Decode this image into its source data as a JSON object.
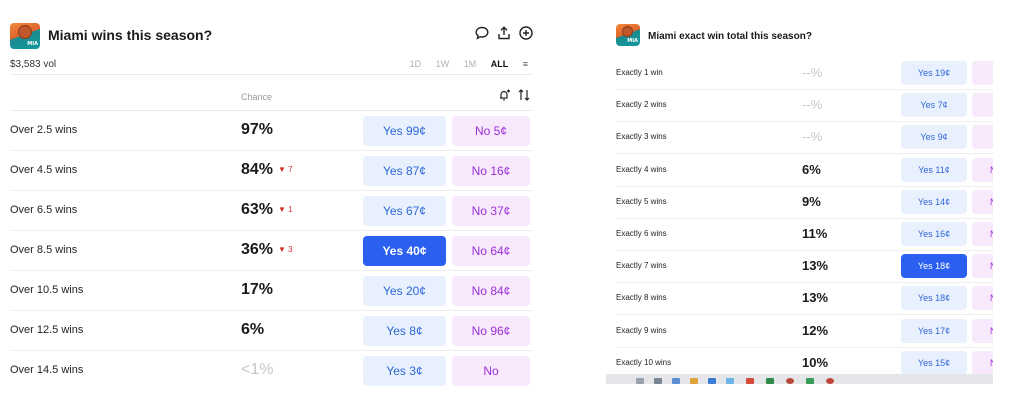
{
  "left": {
    "title": "Miami wins this season?",
    "logo_tag": "MIA",
    "volume": "$3,583 vol",
    "time_ranges": [
      {
        "label": "1D",
        "active": false
      },
      {
        "label": "1W",
        "active": false
      },
      {
        "label": "1M",
        "active": false
      },
      {
        "label": "ALL",
        "active": true
      }
    ],
    "menu_glyph": "≡",
    "header_icons": [
      "comment-icon",
      "share-icon",
      "add-circle-icon"
    ],
    "chance_header": "Chance",
    "tool_icons": [
      "bell-plus-icon",
      "sort-icon"
    ],
    "rows": [
      {
        "label": "Over 2.5 wins",
        "chance": "97%",
        "change": "",
        "yes": "Yes 99¢",
        "no": "No 5¢",
        "selected": false,
        "muted": false
      },
      {
        "label": "Over 4.5 wins",
        "chance": "84%",
        "change": "▼ 7",
        "yes": "Yes 87¢",
        "no": "No 16¢",
        "selected": false,
        "muted": false
      },
      {
        "label": "Over 6.5 wins",
        "chance": "63%",
        "change": "▼ 1",
        "yes": "Yes 67¢",
        "no": "No 37¢",
        "selected": false,
        "muted": false
      },
      {
        "label": "Over 8.5 wins",
        "chance": "36%",
        "change": "▼ 3",
        "yes": "Yes 40¢",
        "no": "No 64¢",
        "selected": true,
        "muted": false
      },
      {
        "label": "Over 10.5 wins",
        "chance": "17%",
        "change": "",
        "yes": "Yes 20¢",
        "no": "No 84¢",
        "selected": false,
        "muted": false
      },
      {
        "label": "Over 12.5 wins",
        "chance": "6%",
        "change": "",
        "yes": "Yes 8¢",
        "no": "No 96¢",
        "selected": false,
        "muted": false
      },
      {
        "label": "Over 14.5 wins",
        "chance": "<1%",
        "change": "",
        "yes": "Yes 3¢",
        "no": "No",
        "selected": false,
        "muted": true
      }
    ]
  },
  "right": {
    "title": "Miami exact win total this season?",
    "logo_tag": "MIA",
    "rows": [
      {
        "label": "Exactly 1 win",
        "chance": "--%",
        "yes": "Yes 19¢",
        "no": "",
        "selected": false,
        "muted": true
      },
      {
        "label": "Exactly 2 wins",
        "chance": "--%",
        "yes": "Yes 7¢",
        "no": "",
        "selected": false,
        "muted": true
      },
      {
        "label": "Exactly 3 wins",
        "chance": "--%",
        "yes": "Yes 9¢",
        "no": "",
        "selected": false,
        "muted": true
      },
      {
        "label": "Exactly 4 wins",
        "chance": "6%",
        "yes": "Yes 11¢",
        "no": "N",
        "selected": false,
        "muted": false
      },
      {
        "label": "Exactly 5 wins",
        "chance": "9%",
        "yes": "Yes 14¢",
        "no": "N",
        "selected": false,
        "muted": false
      },
      {
        "label": "Exactly 6 wins",
        "chance": "11%",
        "yes": "Yes 16¢",
        "no": "N",
        "selected": false,
        "muted": false
      },
      {
        "label": "Exactly 7 wins",
        "chance": "13%",
        "yes": "Yes 18¢",
        "no": "N",
        "selected": true,
        "muted": false
      },
      {
        "label": "Exactly 8 wins",
        "chance": "13%",
        "yes": "Yes 18¢",
        "no": "N",
        "selected": false,
        "muted": false
      },
      {
        "label": "Exactly 9 wins",
        "chance": "12%",
        "yes": "Yes 17¢",
        "no": "N",
        "selected": false,
        "muted": false
      },
      {
        "label": "Exactly 10 wins",
        "chance": "10%",
        "yes": "Yes 15¢",
        "no": "N",
        "selected": false,
        "muted": false
      }
    ]
  },
  "colors": {
    "yes_bg": "#e8f0fd",
    "yes_text": "#2f67d8",
    "yes_selected_bg": "#2a5ff0",
    "no_bg": "#f8e8fb",
    "no_text": "#9b30d6",
    "change_down": "#d62e2e"
  }
}
